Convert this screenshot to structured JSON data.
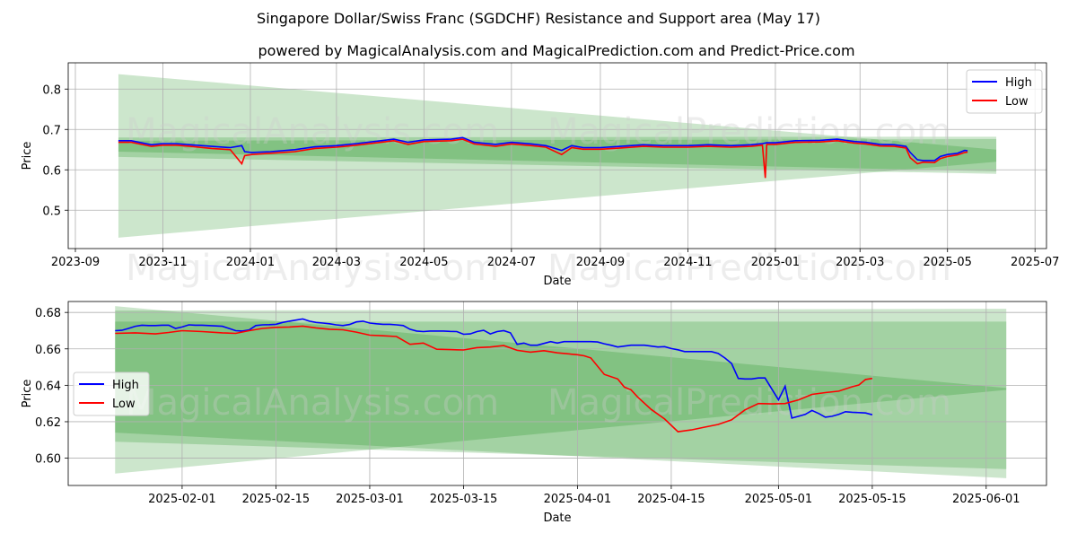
{
  "title": "Singapore Dollar/Swiss Franc (SGDCHF) Resistance and Support area (May 17)",
  "subtitle": "powered by MagicalAnalysis.com and MagicalPrediction.com and Predict-Price.com",
  "watermark": {
    "left": "MagicalAnalysis.com",
    "right": "MagicalPrediction.com"
  },
  "colors": {
    "high": "#0000ff",
    "low": "#ff0000",
    "band": "#008000",
    "grid": "#b0b0b0"
  },
  "chart_data": [
    {
      "type": "line",
      "panel": "top",
      "xlabel": "Date",
      "ylabel": "Price",
      "grid": true,
      "legend_position": "top-right",
      "xlim": [
        "2023-08-27",
        "2025-07-09"
      ],
      "ylim": [
        0.405,
        0.865
      ],
      "x_ticks": [
        "2023-09",
        "2023-11",
        "2024-01",
        "2024-03",
        "2024-05",
        "2024-07",
        "2024-09",
        "2024-11",
        "2025-01",
        "2025-03",
        "2025-05",
        "2025-07"
      ],
      "y_ticks": [
        "0.5",
        "0.6",
        "0.7",
        "0.8"
      ],
      "bands": [
        {
          "x": [
            "2023-10-01",
            "2025-06-04"
          ],
          "upper": [
            0.837,
            0.65
          ],
          "lower": [
            0.432,
            0.62
          ]
        },
        {
          "x": [
            "2023-10-01",
            "2025-06-04"
          ],
          "upper": [
            0.68,
            0.682
          ],
          "lower": [
            0.632,
            0.59
          ]
        },
        {
          "x": [
            "2023-10-01",
            "2025-06-04"
          ],
          "upper": [
            0.672,
            0.676
          ],
          "lower": [
            0.645,
            0.596
          ]
        }
      ],
      "series": [
        {
          "name": "High",
          "x": [
            "2023-10-01",
            "2023-10-10",
            "2023-10-24",
            "2023-11-01",
            "2023-11-10",
            "2023-11-20",
            "2023-12-05",
            "2023-12-18",
            "2023-12-26",
            "2023-12-28",
            "2024-01-02",
            "2024-01-15",
            "2024-02-01",
            "2024-02-15",
            "2024-03-01",
            "2024-03-15",
            "2024-04-01",
            "2024-04-10",
            "2024-04-20",
            "2024-05-01",
            "2024-05-20",
            "2024-05-28",
            "2024-06-05",
            "2024-06-20",
            "2024-07-01",
            "2024-07-15",
            "2024-07-25",
            "2024-08-05",
            "2024-08-12",
            "2024-08-20",
            "2024-09-01",
            "2024-09-15",
            "2024-10-01",
            "2024-10-15",
            "2024-11-01",
            "2024-11-15",
            "2024-12-01",
            "2024-12-15",
            "2024-12-23",
            "2024-12-26",
            "2025-01-01",
            "2025-01-15",
            "2025-02-01",
            "2025-02-13",
            "2025-02-25",
            "2025-03-05",
            "2025-03-15",
            "2025-03-25",
            "2025-04-02",
            "2025-04-05",
            "2025-04-10",
            "2025-04-14",
            "2025-04-22",
            "2025-04-26",
            "2025-05-01",
            "2025-05-08",
            "2025-05-13",
            "2025-05-15"
          ],
          "y": [
            0.672,
            0.672,
            0.662,
            0.665,
            0.665,
            0.662,
            0.658,
            0.655,
            0.66,
            0.645,
            0.643,
            0.645,
            0.65,
            0.657,
            0.66,
            0.665,
            0.672,
            0.676,
            0.668,
            0.674,
            0.676,
            0.68,
            0.668,
            0.663,
            0.668,
            0.664,
            0.66,
            0.648,
            0.66,
            0.655,
            0.655,
            0.658,
            0.662,
            0.66,
            0.66,
            0.662,
            0.66,
            0.662,
            0.665,
            0.667,
            0.667,
            0.672,
            0.673,
            0.676,
            0.67,
            0.668,
            0.663,
            0.662,
            0.658,
            0.643,
            0.625,
            0.623,
            0.623,
            0.633,
            0.638,
            0.641,
            0.648,
            0.647
          ]
        },
        {
          "name": "Low",
          "x": [
            "2023-10-01",
            "2023-10-10",
            "2023-10-24",
            "2023-11-01",
            "2023-11-10",
            "2023-11-20",
            "2023-12-05",
            "2023-12-18",
            "2023-12-26",
            "2023-12-28",
            "2024-01-02",
            "2024-01-15",
            "2024-02-01",
            "2024-02-15",
            "2024-03-01",
            "2024-03-15",
            "2024-04-01",
            "2024-04-10",
            "2024-04-20",
            "2024-05-01",
            "2024-05-20",
            "2024-05-28",
            "2024-06-05",
            "2024-06-20",
            "2024-07-01",
            "2024-07-15",
            "2024-07-25",
            "2024-08-05",
            "2024-08-12",
            "2024-08-20",
            "2024-09-01",
            "2024-09-15",
            "2024-10-01",
            "2024-10-15",
            "2024-11-01",
            "2024-11-15",
            "2024-12-01",
            "2024-12-15",
            "2024-12-23",
            "2024-12-25",
            "2024-12-26",
            "2025-01-01",
            "2025-01-15",
            "2025-02-01",
            "2025-02-13",
            "2025-02-25",
            "2025-03-05",
            "2025-03-15",
            "2025-03-25",
            "2025-04-02",
            "2025-04-05",
            "2025-04-10",
            "2025-04-14",
            "2025-04-22",
            "2025-04-26",
            "2025-05-01",
            "2025-05-08",
            "2025-05-13",
            "2025-05-15"
          ],
          "y": [
            0.668,
            0.668,
            0.658,
            0.661,
            0.661,
            0.658,
            0.653,
            0.65,
            0.615,
            0.635,
            0.638,
            0.641,
            0.645,
            0.653,
            0.656,
            0.661,
            0.668,
            0.672,
            0.663,
            0.67,
            0.672,
            0.676,
            0.664,
            0.658,
            0.664,
            0.66,
            0.656,
            0.638,
            0.655,
            0.651,
            0.651,
            0.654,
            0.658,
            0.656,
            0.656,
            0.658,
            0.656,
            0.658,
            0.661,
            0.58,
            0.663,
            0.663,
            0.668,
            0.669,
            0.672,
            0.666,
            0.664,
            0.659,
            0.658,
            0.654,
            0.63,
            0.615,
            0.619,
            0.618,
            0.628,
            0.633,
            0.637,
            0.643,
            0.644
          ]
        }
      ]
    },
    {
      "type": "line",
      "panel": "bottom",
      "xlabel": "Date",
      "ylabel": "Price",
      "grid": true,
      "legend_position": "center-left",
      "xlim": [
        "2025-01-15",
        "2025-06-10"
      ],
      "ylim": [
        0.585,
        0.686
      ],
      "x_ticks": [
        "2025-02-01",
        "2025-02-15",
        "2025-03-01",
        "2025-03-15",
        "2025-04-01",
        "2025-04-15",
        "2025-05-01",
        "2025-05-15",
        "2025-06-01"
      ],
      "y_ticks": [
        "0.60",
        "0.62",
        "0.64",
        "0.66",
        "0.68"
      ],
      "bands": [
        {
          "x": [
            "2025-01-22",
            "2025-06-04"
          ],
          "upper": [
            0.6835,
            0.6385
          ],
          "lower": [
            0.5915,
            0.6375
          ]
        },
        {
          "x": [
            "2025-01-22",
            "2025-06-04"
          ],
          "upper": [
            0.681,
            0.682
          ],
          "lower": [
            0.614,
            0.589
          ]
        },
        {
          "x": [
            "2025-01-22",
            "2025-06-04"
          ],
          "upper": [
            0.675,
            0.675
          ],
          "lower": [
            0.609,
            0.594
          ]
        }
      ],
      "series": [
        {
          "name": "High",
          "x": [
            "2025-01-22",
            "2025-01-23",
            "2025-01-24",
            "2025-01-25",
            "2025-01-26",
            "2025-01-27",
            "2025-01-28",
            "2025-01-29",
            "2025-01-30",
            "2025-01-31",
            "2025-02-01",
            "2025-02-02",
            "2025-02-03",
            "2025-02-04",
            "2025-02-05",
            "2025-02-06",
            "2025-02-07",
            "2025-02-08",
            "2025-02-09",
            "2025-02-10",
            "2025-02-11",
            "2025-02-12",
            "2025-02-13",
            "2025-02-14",
            "2025-02-15",
            "2025-02-16",
            "2025-02-17",
            "2025-02-18",
            "2025-02-19",
            "2025-02-20",
            "2025-02-21",
            "2025-02-22",
            "2025-02-23",
            "2025-02-24",
            "2025-02-25",
            "2025-02-26",
            "2025-02-27",
            "2025-02-28",
            "2025-03-01",
            "2025-03-02",
            "2025-03-03",
            "2025-03-04",
            "2025-03-05",
            "2025-03-06",
            "2025-03-07",
            "2025-03-08",
            "2025-03-09",
            "2025-03-10",
            "2025-03-11",
            "2025-03-12",
            "2025-03-13",
            "2025-03-14",
            "2025-03-15",
            "2025-03-16",
            "2025-03-17",
            "2025-03-18",
            "2025-03-19",
            "2025-03-20",
            "2025-03-21",
            "2025-03-22",
            "2025-03-23",
            "2025-03-24",
            "2025-03-25",
            "2025-03-26",
            "2025-03-27",
            "2025-03-28",
            "2025-03-29",
            "2025-03-30",
            "2025-03-31",
            "2025-04-01",
            "2025-04-02",
            "2025-04-03",
            "2025-04-04",
            "2025-04-05",
            "2025-04-06",
            "2025-04-07",
            "2025-04-08",
            "2025-04-09",
            "2025-04-10",
            "2025-04-11",
            "2025-04-12",
            "2025-04-13",
            "2025-04-14",
            "2025-04-15",
            "2025-04-16",
            "2025-04-17",
            "2025-04-18",
            "2025-04-19",
            "2025-04-20",
            "2025-04-21",
            "2025-04-22",
            "2025-04-23",
            "2025-04-24",
            "2025-04-25",
            "2025-04-26",
            "2025-04-27",
            "2025-04-28",
            "2025-04-29",
            "2025-04-30",
            "2025-05-01",
            "2025-05-02",
            "2025-05-03",
            "2025-05-04",
            "2025-05-05",
            "2025-05-06",
            "2025-05-07",
            "2025-05-08",
            "2025-05-09",
            "2025-05-10",
            "2025-05-11",
            "2025-05-12",
            "2025-05-13",
            "2025-05-14",
            "2025-05-15"
          ],
          "y": [
            0.67,
            0.6702,
            0.6712,
            0.6724,
            0.673,
            0.6728,
            0.6728,
            0.673,
            0.673,
            0.6712,
            0.672,
            0.6732,
            0.673,
            0.673,
            0.6728,
            0.6726,
            0.6724,
            0.6712,
            0.67,
            0.6698,
            0.6704,
            0.6728,
            0.6732,
            0.6733,
            0.6735,
            0.6745,
            0.6752,
            0.6758,
            0.6764,
            0.6752,
            0.6745,
            0.6742,
            0.6738,
            0.6732,
            0.6728,
            0.6734,
            0.6748,
            0.6752,
            0.6742,
            0.6738,
            0.6735,
            0.6735,
            0.6732,
            0.6728,
            0.6708,
            0.6698,
            0.6695,
            0.6698,
            0.6698,
            0.6698,
            0.6696,
            0.6695,
            0.668,
            0.6682,
            0.6695,
            0.6702,
            0.6682,
            0.6695,
            0.67,
            0.6688,
            0.6625,
            0.6632,
            0.662,
            0.662,
            0.663,
            0.664,
            0.6632,
            0.664,
            0.664,
            0.664,
            0.664,
            0.664,
            0.6638,
            0.6628,
            0.662,
            0.661,
            0.6615,
            0.662,
            0.662,
            0.662,
            0.6615,
            0.661,
            0.6612,
            0.6602,
            0.6595,
            0.6585,
            0.6585,
            0.6585,
            0.6585,
            0.6585,
            0.6575,
            0.655,
            0.652,
            0.6438,
            0.6435,
            0.6435,
            0.644,
            0.644,
            0.638,
            0.632,
            0.6395,
            0.622,
            0.623,
            0.624,
            0.6262,
            0.6245,
            0.6225,
            0.623,
            0.624,
            0.6255,
            0.6252,
            0.625,
            0.6248,
            0.6238
          ],
          "y_visible_trace_note": ""
        },
        {
          "name": "Low",
          "x": [
            "2025-01-22",
            "2025-01-25",
            "2025-01-28",
            "2025-01-30",
            "2025-02-01",
            "2025-02-04",
            "2025-02-07",
            "2025-02-09",
            "2025-02-11",
            "2025-02-13",
            "2025-02-15",
            "2025-02-17",
            "2025-02-19",
            "2025-02-21",
            "2025-02-23",
            "2025-02-25",
            "2025-02-27",
            "2025-03-01",
            "2025-03-03",
            "2025-03-05",
            "2025-03-07",
            "2025-03-09",
            "2025-03-11",
            "2025-03-13",
            "2025-03-15",
            "2025-03-17",
            "2025-03-19",
            "2025-03-21",
            "2025-03-23",
            "2025-03-25",
            "2025-03-27",
            "2025-03-29",
            "2025-04-01",
            "2025-04-02",
            "2025-04-03",
            "2025-04-05",
            "2025-04-07",
            "2025-04-08",
            "2025-04-09",
            "2025-04-10",
            "2025-04-12",
            "2025-04-14",
            "2025-04-16",
            "2025-04-18",
            "2025-04-20",
            "2025-04-22",
            "2025-04-24",
            "2025-04-26",
            "2025-04-28",
            "2025-04-30",
            "2025-05-02",
            "2025-05-04",
            "2025-05-06",
            "2025-05-08",
            "2025-05-10",
            "2025-05-12",
            "2025-05-13",
            "2025-05-14",
            "2025-05-15"
          ],
          "y": [
            0.6685,
            0.6688,
            0.6682,
            0.669,
            0.67,
            0.6695,
            0.6688,
            0.6685,
            0.67,
            0.6712,
            0.6718,
            0.672,
            0.6725,
            0.6715,
            0.6708,
            0.6705,
            0.6692,
            0.6675,
            0.6672,
            0.6668,
            0.6625,
            0.6632,
            0.6598,
            0.6596,
            0.6594,
            0.6607,
            0.661,
            0.6618,
            0.6592,
            0.6582,
            0.659,
            0.6578,
            0.6568,
            0.6562,
            0.655,
            0.646,
            0.6435,
            0.639,
            0.6375,
            0.6335,
            0.6268,
            0.6215,
            0.6145,
            0.6155,
            0.617,
            0.6185,
            0.621,
            0.6265,
            0.63,
            0.6298,
            0.63,
            0.632,
            0.635,
            0.636,
            0.6368,
            0.6392,
            0.6402,
            0.6432,
            0.6438
          ]
        }
      ]
    }
  ]
}
